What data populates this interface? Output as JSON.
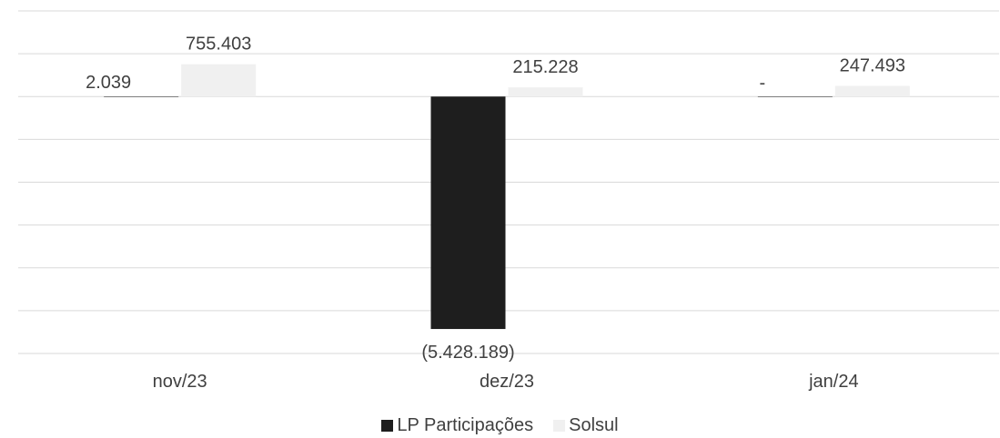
{
  "chart_data": {
    "type": "bar",
    "categories": [
      "nov/23",
      "dez/23",
      "jan/24"
    ],
    "series": [
      {
        "name": "LP Participações",
        "values": [
          2039,
          -5428189,
          0
        ],
        "labels": [
          "2.039",
          "(5.428.189)",
          "-"
        ],
        "color": "#1e1e1e"
      },
      {
        "name": "Solsul",
        "values": [
          755403,
          215228,
          247493
        ],
        "labels": [
          "755.403",
          "215.228",
          "247.493"
        ],
        "color": "#f0f0f0"
      }
    ],
    "ylim": [
      -6000000,
      2000000
    ],
    "ytick_step": 1000000,
    "grid": true,
    "legend_position": "bottom"
  },
  "legend": {
    "items": [
      {
        "label": "LP Participações",
        "color": "#1e1e1e"
      },
      {
        "label": "Solsul",
        "color": "#f0f0f0"
      }
    ]
  }
}
